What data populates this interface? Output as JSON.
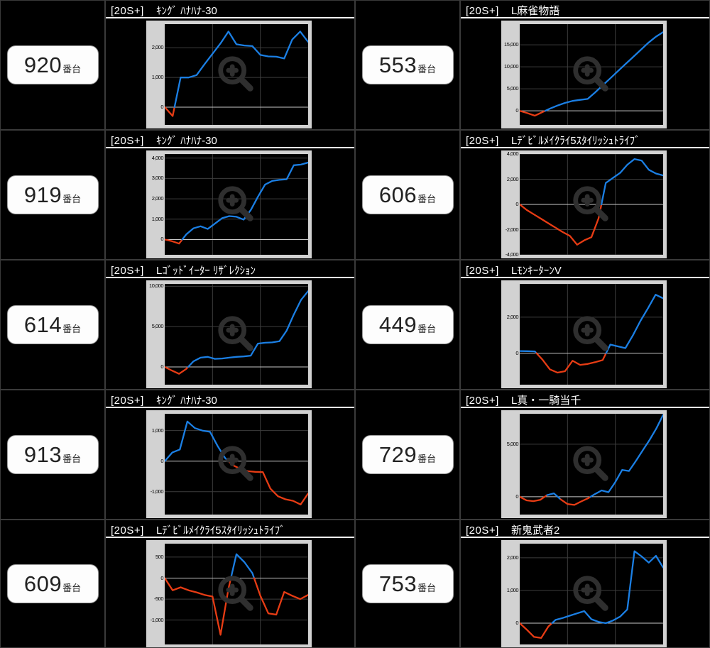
{
  "page": {
    "background": "#000000",
    "rows": 5,
    "cols": 2
  },
  "colors": {
    "line_positive_blue": "#1b7fe4",
    "line_negative_red": "#e73c14",
    "chart_frame_gray": "#d2d2d2",
    "grid_line": "#3d3d3d",
    "zero_line": "#c8c8c8",
    "watermark_gray": "#2f2f2f",
    "cell_border": "#3a3a3a",
    "title_text": "#ffffff",
    "number_text": "#222222",
    "number_box_bg": "#fdfdfd"
  },
  "unit_suffix": "番台",
  "title_prefix": "[20S+]",
  "cells": [
    {
      "machine_no": "920",
      "machine_name": "ｷﾝｸﾞ ﾊﾅﾊﾅ-30"
    },
    {
      "machine_no": "553",
      "machine_name": "L麻雀物語"
    },
    {
      "machine_no": "919",
      "machine_name": "ｷﾝｸﾞ ﾊﾅﾊﾅ-30"
    },
    {
      "machine_no": "606",
      "machine_name": "Lﾃﾞﾋﾞﾙﾒｲｸﾗｲ5ｽﾀｲﾘｯｼｭﾄﾗｲﾌﾞ"
    },
    {
      "machine_no": "614",
      "machine_name": "Lｺﾞｯﾄﾞｲｰﾀｰ ﾘｻﾞﾚｸｼｮﾝ"
    },
    {
      "machine_no": "449",
      "machine_name": "LﾓﾝｷｰﾀｰﾝV"
    },
    {
      "machine_no": "913",
      "machine_name": "ｷﾝｸﾞ ﾊﾅﾊﾅ-30"
    },
    {
      "machine_no": "729",
      "machine_name": "L真・一騎当千"
    },
    {
      "machine_no": "609",
      "machine_name": "Lﾃﾞﾋﾞﾙﾒｲｸﾗｲ5ｽﾀｲﾘｯｼｭﾄﾗｲﾌﾞ"
    },
    {
      "machine_no": "753",
      "machine_name": "新鬼武者2"
    }
  ],
  "chart_data": [
    {
      "type": "line",
      "machine_no": "920",
      "title": "[20S+] ｷﾝｸﾞ ﾊﾅﾊﾅ-30",
      "ylim": [
        -600,
        2800
      ],
      "yticks": [
        0,
        1000,
        2000
      ],
      "values": [
        0,
        -300,
        1000,
        1000,
        1080,
        1450,
        1800,
        2150,
        2550,
        2120,
        2080,
        2060,
        1760,
        1710,
        1700,
        1640,
        2280,
        2550,
        2200
      ],
      "coloring": "red below 0, blue above 0",
      "grid": "on",
      "legend": "none"
    },
    {
      "type": "line",
      "machine_no": "553",
      "title": "[20S+] L麻雀物語",
      "ylim": [
        -3200,
        19700
      ],
      "yticks": [
        0,
        5000,
        10000,
        15000
      ],
      "values": [
        0,
        -500,
        -1100,
        -300,
        500,
        1200,
        1800,
        2250,
        2500,
        2700,
        4200,
        5800,
        7400,
        9000,
        10600,
        12200,
        13800,
        15400,
        16800,
        17900
      ],
      "coloring": "red below 0, blue above 0",
      "grid": "on",
      "legend": "none"
    },
    {
      "type": "line",
      "machine_no": "919",
      "title": "[20S+] ｷﾝｸﾞ ﾊﾅﾊﾅ-30",
      "ylim": [
        -750,
        4200
      ],
      "yticks": [
        0,
        1000,
        2000,
        3000,
        4000
      ],
      "values": [
        0,
        -80,
        -200,
        250,
        550,
        650,
        520,
        780,
        1050,
        1150,
        1120,
        980,
        1450,
        2100,
        2700,
        2880,
        2930,
        2960,
        3650,
        3680,
        3780
      ],
      "coloring": "red below 0, blue above 0",
      "grid": "on",
      "legend": "none"
    },
    {
      "type": "line",
      "machine_no": "606",
      "title": "[20S+] Lﾃﾞﾋﾞﾙﾒｲｸﾗｲ5ｽﾀｲﾘｯｼｭﾄﾗｲﾌﾞ",
      "ylim": [
        -4000,
        4000
      ],
      "yticks": [
        -4000,
        -2000,
        0,
        2000,
        4000
      ],
      "values": [
        0,
        -450,
        -800,
        -1150,
        -1500,
        -1850,
        -2200,
        -2500,
        -3200,
        -2850,
        -2600,
        -1100,
        1700,
        2100,
        2500,
        3150,
        3600,
        3480,
        2750,
        2450,
        2300
      ],
      "coloring": "red below 0, blue above 0",
      "grid": "on",
      "legend": "none"
    },
    {
      "type": "line",
      "machine_no": "614",
      "title": "[20S+] Lｺﾞｯﾄﾞｲｰﾀｰ ﾘｻﾞﾚｸｼｮﾝ",
      "ylim": [
        -2200,
        10300
      ],
      "yticks": [
        0,
        5000,
        10000
      ],
      "values": [
        0,
        -450,
        -850,
        -250,
        700,
        1150,
        1250,
        1000,
        1050,
        1150,
        1250,
        1300,
        1400,
        2900,
        3000,
        3050,
        3200,
        4500,
        6500,
        8300,
        9400
      ],
      "coloring": "red below 0, blue above 0",
      "grid": "on",
      "legend": "none"
    },
    {
      "type": "line",
      "machine_no": "449",
      "title": "[20S+] LﾓﾝｷｰﾀｰﾝV",
      "ylim": [
        -1750,
        3850
      ],
      "yticks": [
        0,
        2000
      ],
      "values": [
        120,
        110,
        100,
        -350,
        -900,
        -1080,
        -1000,
        -420,
        -650,
        -600,
        -500,
        -380,
        480,
        380,
        280,
        1000,
        1800,
        2500,
        3250,
        3050
      ],
      "coloring": "red below 0, blue above 0",
      "grid": "on",
      "legend": "none"
    },
    {
      "type": "line",
      "machine_no": "913",
      "title": "[20S+] ｷﾝｸﾞ ﾊﾅﾊﾅ-30",
      "ylim": [
        -1750,
        1550
      ],
      "yticks": [
        -1000,
        0,
        1000
      ],
      "values": [
        0,
        280,
        380,
        1300,
        1080,
        1000,
        960,
        500,
        100,
        -130,
        -250,
        -330,
        -350,
        -360,
        -900,
        -1150,
        -1250,
        -1300,
        -1420,
        -1060
      ],
      "coloring": "red below 0, blue above 0",
      "grid": "on",
      "legend": "none"
    },
    {
      "type": "line",
      "machine_no": "729",
      "title": "[20S+] L真・一騎当千",
      "ylim": [
        -1700,
        7900
      ],
      "yticks": [
        0,
        5000
      ],
      "values": [
        0,
        -350,
        -420,
        -300,
        150,
        320,
        -250,
        -700,
        -780,
        -450,
        -150,
        250,
        600,
        430,
        1400,
        2550,
        2450,
        3400,
        4400,
        5400,
        6500,
        7800
      ],
      "coloring": "red below 0, blue above 0",
      "grid": "on",
      "legend": "none"
    },
    {
      "type": "line",
      "machine_no": "609",
      "title": "[20S+] Lﾃﾞﾋﾞﾙﾒｲｸﾗｲ5ｽﾀｲﾘｯｼｭﾄﾗｲﾌﾞ",
      "ylim": [
        -1580,
        820
      ],
      "yticks": [
        -1000,
        -500,
        0,
        500
      ],
      "values": [
        0,
        -290,
        -220,
        -290,
        -340,
        -400,
        -440,
        -1350,
        -250,
        570,
        380,
        120,
        -420,
        -840,
        -870,
        -330,
        -420,
        -500,
        -400
      ],
      "coloring": "red below 0, blue above 0",
      "grid": "on",
      "legend": "none"
    },
    {
      "type": "line",
      "machine_no": "753",
      "title": "[20S+] 新鬼武者2",
      "ylim": [
        -650,
        2430
      ],
      "yticks": [
        0,
        1000,
        2000
      ],
      "values": [
        0,
        -200,
        -420,
        -450,
        -100,
        100,
        160,
        230,
        300,
        370,
        120,
        40,
        0,
        80,
        200,
        420,
        2200,
        2040,
        1850,
        2060,
        1700
      ],
      "coloring": "red below 0, blue above 0",
      "grid": "on",
      "legend": "none"
    }
  ]
}
